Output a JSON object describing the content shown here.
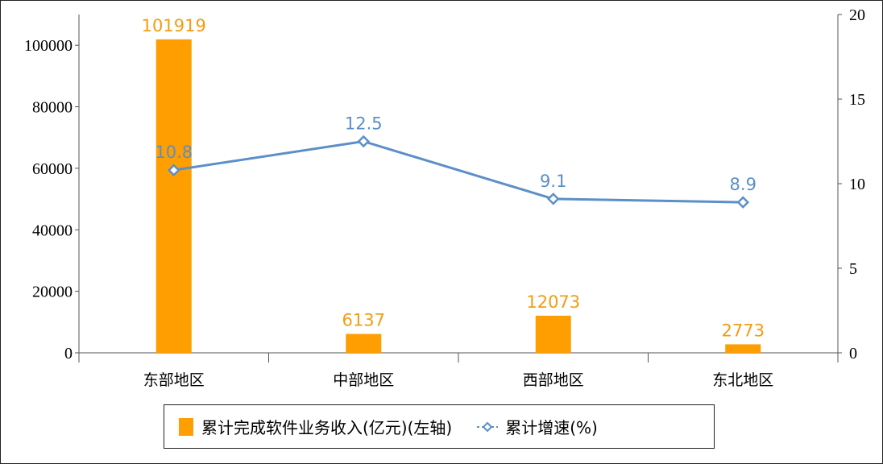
{
  "chart_data": {
    "type": "bar+line",
    "categories": [
      "东部地区",
      "中部地区",
      "西部地区",
      "东北地区"
    ],
    "series": [
      {
        "name": "累计完成软件业务收入(亿元)(左轴)",
        "type": "bar",
        "axis": "left",
        "values": [
          101919,
          6137,
          12073,
          2773
        ],
        "color": "#ff9e00",
        "label_color": "#f39c12"
      },
      {
        "name": "累计增速(%)",
        "type": "line",
        "axis": "right",
        "values": [
          10.8,
          12.5,
          9.1,
          8.9
        ],
        "color": "#5b8fc7"
      }
    ],
    "left_axis": {
      "ylim": [
        0,
        110000
      ],
      "ticks": [
        "0",
        "20000",
        "40000",
        "60000",
        "80000",
        "100000"
      ]
    },
    "right_axis": {
      "ylim": [
        0,
        20
      ],
      "ticks": [
        "0",
        "5",
        "10",
        "15",
        "20"
      ]
    },
    "legend_position": "bottom",
    "grid": false
  }
}
